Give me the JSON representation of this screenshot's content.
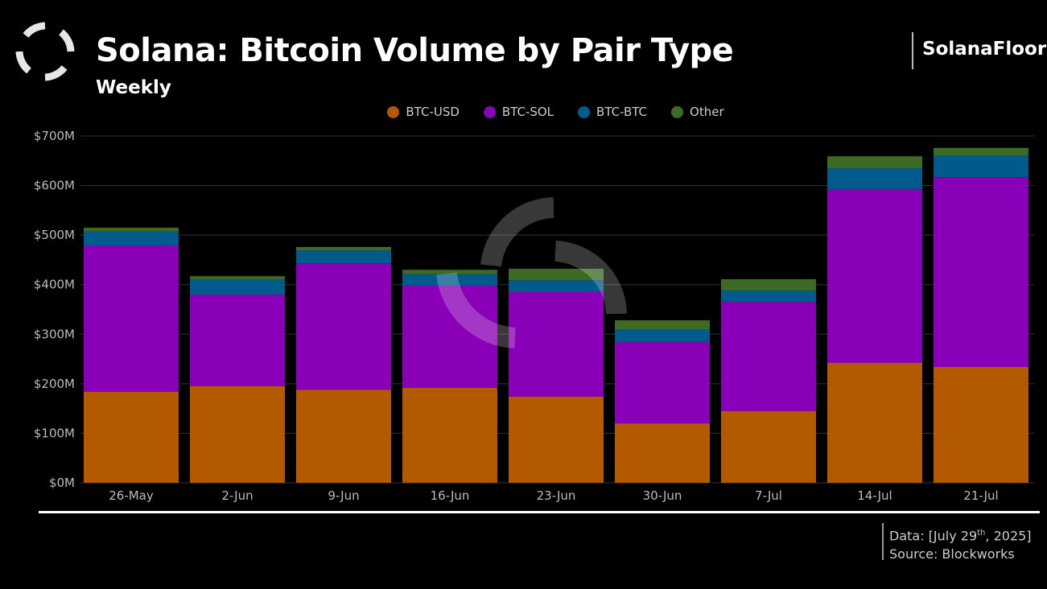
{
  "header": {
    "title": "Solana: Bitcoin Volume by Pair Type",
    "subtitle": "Weekly",
    "brand": "SolanaFloor",
    "logo_icon": "solanafloor-logo-icon"
  },
  "footer": {
    "data_prefix": "Data: [July 29",
    "data_sup": "th",
    "data_suffix": ", 2025]",
    "source": "Source: Blockworks"
  },
  "chart_data": {
    "type": "bar",
    "stacked": true,
    "title": "Solana: Bitcoin Volume by Pair Type",
    "subtitle": "Weekly",
    "categories": [
      "26-May",
      "2-Jun",
      "9-Jun",
      "16-Jun",
      "23-Jun",
      "30-Jun",
      "7-Jul",
      "14-Jul",
      "21-Jul"
    ],
    "series": [
      {
        "name": "BTC-USD",
        "color": "#b35900",
        "values": [
          184,
          195,
          188,
          192,
          174,
          120,
          145,
          242,
          234
        ]
      },
      {
        "name": "BTC-SOL",
        "color": "#8a00b8",
        "values": [
          295,
          185,
          255,
          206,
          211,
          164,
          220,
          351,
          383
        ]
      },
      {
        "name": "BTC-BTC",
        "color": "#005a8c",
        "values": [
          28,
          31,
          26,
          23,
          24,
          25,
          23,
          42,
          44
        ]
      },
      {
        "name": "Other",
        "color": "#3d6b24",
        "values": [
          8,
          6,
          7,
          9,
          23,
          19,
          23,
          24,
          15
        ]
      }
    ],
    "yticks": [
      "$0M",
      "$100M",
      "$200M",
      "$300M",
      "$400M",
      "$500M",
      "$600M",
      "$700M"
    ],
    "ylim": [
      0,
      700
    ],
    "yunit": "$M",
    "grid": true,
    "legend": "top"
  }
}
